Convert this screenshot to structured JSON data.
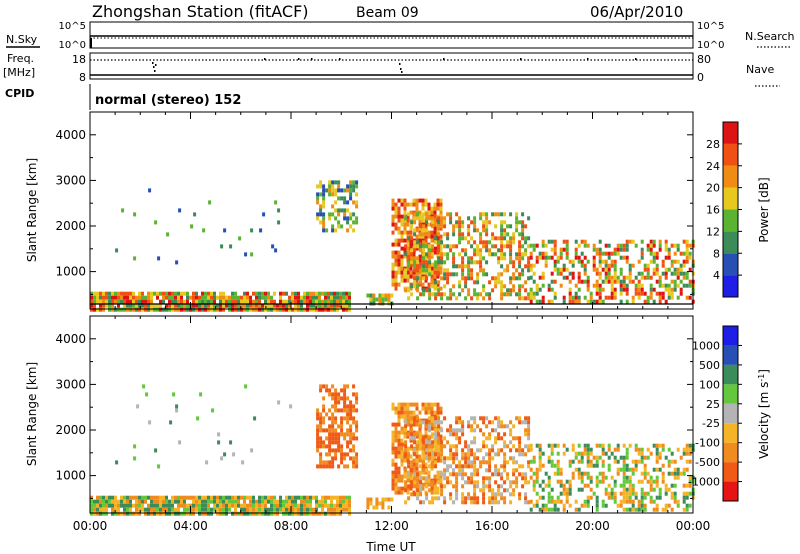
{
  "header": {
    "station_title": "Zhongshan Station (fitACF)",
    "beam": "Beam 09",
    "date": "06/Apr/2010"
  },
  "aux_panels": {
    "nsky_label": "N.Sky",
    "nsky_ticks": [
      "10^5",
      "10^0"
    ],
    "nsearch_label": "N.Search",
    "nsearch_ticks": [
      "10^5",
      "10^0"
    ],
    "freq_label_1": "Freq.",
    "freq_label_2": "[MHz]",
    "freq_ticks": [
      "18",
      "8"
    ],
    "nave_label": "Nave",
    "nave_ticks": [
      "80",
      "0"
    ],
    "cpid_label": "CPID",
    "cpid_text": "normal (stereo) 152"
  },
  "x_axis": {
    "label": "Time UT",
    "ticks": [
      "00:00",
      "04:00",
      "08:00",
      "12:00",
      "16:00",
      "20:00",
      "00:00"
    ]
  },
  "colors": {
    "power_scale": [
      "#1e1ee6",
      "#2850b4",
      "#3c8c5a",
      "#5ab432",
      "#e6c81e",
      "#f08c14",
      "#f05014",
      "#dc1414"
    ],
    "velocity_scale": [
      "#e61414",
      "#f05a14",
      "#f08c1e",
      "#f5b428",
      "#b4b4b4",
      "#64c83c",
      "#3c8c5a",
      "#2850b4",
      "#1e1ee6"
    ]
  },
  "chart_data": [
    {
      "type": "heatmap",
      "title": "Power",
      "ylabel": "Slant Range [km]",
      "xlabel": "",
      "x_range_hours": [
        0,
        24
      ],
      "ylim": [
        180,
        4500
      ],
      "y_ticks": [
        "1000",
        "2000",
        "3000",
        "4000"
      ],
      "colorbar_label": "Power [dB]",
      "colorbar_ticks": [
        "4",
        "8",
        "12",
        "16",
        "20",
        "24",
        "28"
      ],
      "scatter_regions": [
        {
          "t0": 0.0,
          "t1": 10.3,
          "r0": 200,
          "r1": 560,
          "density": 0.9,
          "levels": [
            2,
            3,
            4,
            5,
            6,
            7
          ]
        },
        {
          "t0": 9.0,
          "t1": 10.6,
          "r0": 1900,
          "r1": 3000,
          "density": 0.55,
          "levels": [
            1,
            2,
            3,
            4,
            5
          ]
        },
        {
          "t0": 12.0,
          "t1": 14.0,
          "r0": 600,
          "r1": 2600,
          "density": 0.75,
          "levels": [
            4,
            5,
            6,
            7
          ]
        },
        {
          "t0": 12.5,
          "t1": 17.5,
          "r0": 400,
          "r1": 2300,
          "density": 0.5,
          "levels": [
            2,
            3,
            4,
            5,
            6
          ]
        },
        {
          "t0": 17.5,
          "t1": 24.0,
          "r0": 300,
          "r1": 1700,
          "density": 0.45,
          "levels": [
            2,
            3,
            4,
            5,
            6,
            7
          ]
        },
        {
          "t0": 11.0,
          "t1": 12.0,
          "r0": 300,
          "r1": 520,
          "density": 0.7,
          "levels": [
            2,
            3,
            4,
            5
          ]
        },
        {
          "t0": 1.0,
          "t1": 8.0,
          "r0": 1200,
          "r1": 3000,
          "density": 0.02,
          "levels": [
            1,
            2,
            3
          ]
        }
      ]
    },
    {
      "type": "heatmap",
      "title": "Velocity",
      "ylabel": "Slant Range [km]",
      "xlabel": "Time UT",
      "x_range_hours": [
        0,
        24
      ],
      "ylim": [
        180,
        4500
      ],
      "y_ticks": [
        "1000",
        "2000",
        "3000",
        "4000"
      ],
      "colorbar_label": "Velocity [m s-1]",
      "colorbar_ticks": [
        "1000",
        "500",
        "100",
        "25",
        "-25",
        "-100",
        "-500",
        "-1000"
      ],
      "scatter_regions": [
        {
          "t0": 0.0,
          "t1": 10.3,
          "r0": 200,
          "r1": 560,
          "density": 0.9,
          "levels": [
            2,
            3,
            5,
            6
          ]
        },
        {
          "t0": 9.0,
          "t1": 10.6,
          "r0": 1200,
          "r1": 3000,
          "density": 0.6,
          "levels": [
            1,
            2
          ]
        },
        {
          "t0": 12.0,
          "t1": 14.0,
          "r0": 600,
          "r1": 2600,
          "density": 0.75,
          "levels": [
            1,
            2,
            3
          ]
        },
        {
          "t0": 12.5,
          "t1": 17.5,
          "r0": 400,
          "r1": 2300,
          "density": 0.5,
          "levels": [
            1,
            2,
            3,
            4
          ]
        },
        {
          "t0": 17.5,
          "t1": 24.0,
          "r0": 250,
          "r1": 1700,
          "density": 0.45,
          "levels": [
            2,
            3,
            5,
            6
          ]
        },
        {
          "t0": 11.0,
          "t1": 12.0,
          "r0": 300,
          "r1": 520,
          "density": 0.7,
          "levels": [
            2,
            3
          ]
        },
        {
          "t0": 1.0,
          "t1": 8.0,
          "r0": 1200,
          "r1": 3000,
          "density": 0.02,
          "levels": [
            4,
            5,
            6
          ]
        }
      ]
    }
  ]
}
